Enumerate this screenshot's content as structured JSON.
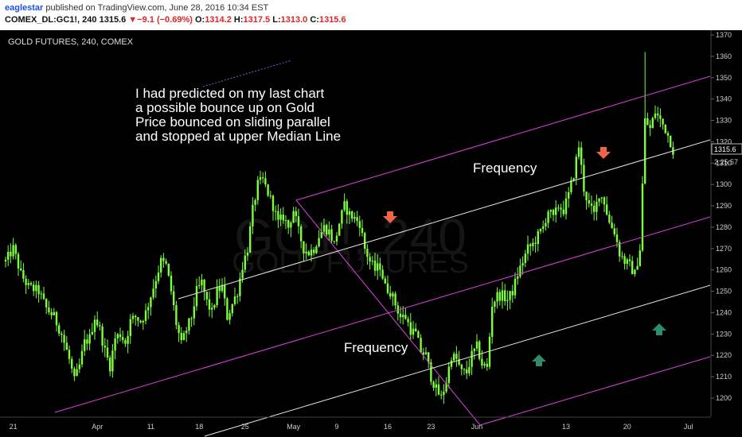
{
  "header": {
    "user": "eaglestar",
    "published": " published on TradingView.com, June 28, 2016 10:34 EST",
    "symbol": "COMEX_DL:GC1!, 240",
    "last": " 1315.6 ",
    "arrow": "▼",
    "change": "−9.1 (−0.69%)",
    "o_label": " O:",
    "o_value": "1314.2",
    "h_label": " H:",
    "h_value": "1317.5",
    "l_label": " L:",
    "l_value": "1313.0",
    "c_label": " C:",
    "c_value": "1315.6"
  },
  "chart": {
    "symbol_title": "GOLD FUTURES, 240, COMEX",
    "watermark_big": "GC1!, 240",
    "watermark_small": "GOLD FUTURES",
    "annotation_lines": [
      "I had predicted on my last chart",
      "a possible bounce up on Gold",
      "Price bounced on sliding parallel",
      "and stopped at upper Median Line"
    ],
    "label_frequency_top": "Frequency",
    "label_frequency_bottom": "Frequency",
    "price_tag": "1315.6",
    "time_tag": "2:25:57",
    "colors": {
      "background": "#000000",
      "candle": "#7cff3a",
      "pitchfork": "#e040e0",
      "frequency_line": "#e8e8e8",
      "arrow_down": "#f0644a",
      "arrow_up": "#2e8b6e",
      "axis_text": "#cccccc"
    }
  },
  "chart_data": {
    "type": "candlestick",
    "title": "GOLD FUTURES, 240, COMEX",
    "y_ticks": [
      1200,
      1210,
      1220,
      1230,
      1240,
      1250,
      1260,
      1270,
      1280,
      1290,
      1300,
      1310,
      1320,
      1330,
      1340,
      1350,
      1360,
      1370
    ],
    "x_ticks": [
      "21",
      "Apr",
      "11",
      "18",
      "25",
      "May",
      "9",
      "16",
      "23",
      "Jun",
      "13",
      "20",
      "Jul"
    ],
    "ylim": [
      1195,
      1371
    ],
    "last_price": 1315.6,
    "close_path": [
      [
        0,
        1264
      ],
      [
        3,
        1270
      ],
      [
        6,
        1258
      ],
      [
        9,
        1252
      ],
      [
        13,
        1250
      ],
      [
        16,
        1242
      ],
      [
        19,
        1238
      ],
      [
        22,
        1230
      ],
      [
        25,
        1218
      ],
      [
        27,
        1208
      ],
      [
        29,
        1215
      ],
      [
        31,
        1226
      ],
      [
        33,
        1228
      ],
      [
        35,
        1238
      ],
      [
        37,
        1232
      ],
      [
        39,
        1222
      ],
      [
        41,
        1215
      ],
      [
        43,
        1228
      ],
      [
        45,
        1230
      ],
      [
        47,
        1226
      ],
      [
        49,
        1236
      ],
      [
        51,
        1238
      ],
      [
        53,
        1236
      ],
      [
        55,
        1240
      ],
      [
        57,
        1248
      ],
      [
        59,
        1256
      ],
      [
        61,
        1264
      ],
      [
        63,
        1262
      ],
      [
        65,
        1250
      ],
      [
        67,
        1235
      ],
      [
        69,
        1225
      ],
      [
        71,
        1232
      ],
      [
        73,
        1238
      ],
      [
        75,
        1250
      ],
      [
        77,
        1254
      ],
      [
        79,
        1245
      ],
      [
        81,
        1240
      ],
      [
        83,
        1250
      ],
      [
        85,
        1252
      ],
      [
        87,
        1238
      ],
      [
        89,
        1244
      ],
      [
        91,
        1250
      ],
      [
        93,
        1262
      ],
      [
        95,
        1270
      ],
      [
        97,
        1288
      ],
      [
        99,
        1300
      ],
      [
        101,
        1302
      ],
      [
        103,
        1296
      ],
      [
        105,
        1290
      ],
      [
        107,
        1282
      ],
      [
        109,
        1285
      ],
      [
        111,
        1280
      ],
      [
        113,
        1288
      ],
      [
        115,
        1278
      ],
      [
        117,
        1270
      ],
      [
        119,
        1268
      ],
      [
        121,
        1270
      ],
      [
        123,
        1276
      ],
      [
        125,
        1280
      ],
      [
        127,
        1278
      ],
      [
        129,
        1272
      ],
      [
        131,
        1282
      ],
      [
        133,
        1290
      ],
      [
        135,
        1286
      ],
      [
        137,
        1284
      ],
      [
        139,
        1282
      ],
      [
        141,
        1270
      ],
      [
        143,
        1264
      ],
      [
        145,
        1260
      ],
      [
        147,
        1262
      ],
      [
        149,
        1252
      ],
      [
        151,
        1250
      ],
      [
        153,
        1244
      ],
      [
        155,
        1238
      ],
      [
        157,
        1238
      ],
      [
        159,
        1232
      ],
      [
        161,
        1230
      ],
      [
        163,
        1222
      ],
      [
        165,
        1220
      ],
      [
        167,
        1210
      ],
      [
        169,
        1204
      ],
      [
        171,
        1200
      ],
      [
        173,
        1208
      ],
      [
        175,
        1220
      ],
      [
        177,
        1218
      ],
      [
        179,
        1212
      ],
      [
        181,
        1212
      ],
      [
        183,
        1220
      ],
      [
        185,
        1224
      ],
      [
        187,
        1216
      ],
      [
        189,
        1214
      ],
      [
        191,
        1244
      ],
      [
        193,
        1248
      ],
      [
        195,
        1248
      ],
      [
        197,
        1246
      ],
      [
        199,
        1250
      ],
      [
        201,
        1258
      ],
      [
        203,
        1264
      ],
      [
        205,
        1270
      ],
      [
        207,
        1272
      ],
      [
        209,
        1276
      ],
      [
        211,
        1280
      ],
      [
        213,
        1288
      ],
      [
        215,
        1284
      ],
      [
        217,
        1290
      ],
      [
        219,
        1288
      ],
      [
        221,
        1295
      ],
      [
        223,
        1305
      ],
      [
        225,
        1318
      ],
      [
        227,
        1298
      ],
      [
        229,
        1290
      ],
      [
        231,
        1286
      ],
      [
        233,
        1296
      ],
      [
        235,
        1292
      ],
      [
        237,
        1282
      ],
      [
        239,
        1278
      ],
      [
        241,
        1268
      ],
      [
        243,
        1264
      ],
      [
        245,
        1262
      ],
      [
        247,
        1258
      ],
      [
        249,
        1270
      ],
      [
        251,
        1330
      ],
      [
        253,
        1326
      ],
      [
        255,
        1334
      ],
      [
        257,
        1330
      ],
      [
        259,
        1326
      ],
      [
        261,
        1320
      ],
      [
        262,
        1316
      ]
    ],
    "annotations": [
      "I had predicted on my last chart",
      "a possible bounce up on Gold",
      "Price bounced on sliding parallel",
      "and stopped at upper Median Line",
      "Frequency",
      "Frequency"
    ]
  }
}
